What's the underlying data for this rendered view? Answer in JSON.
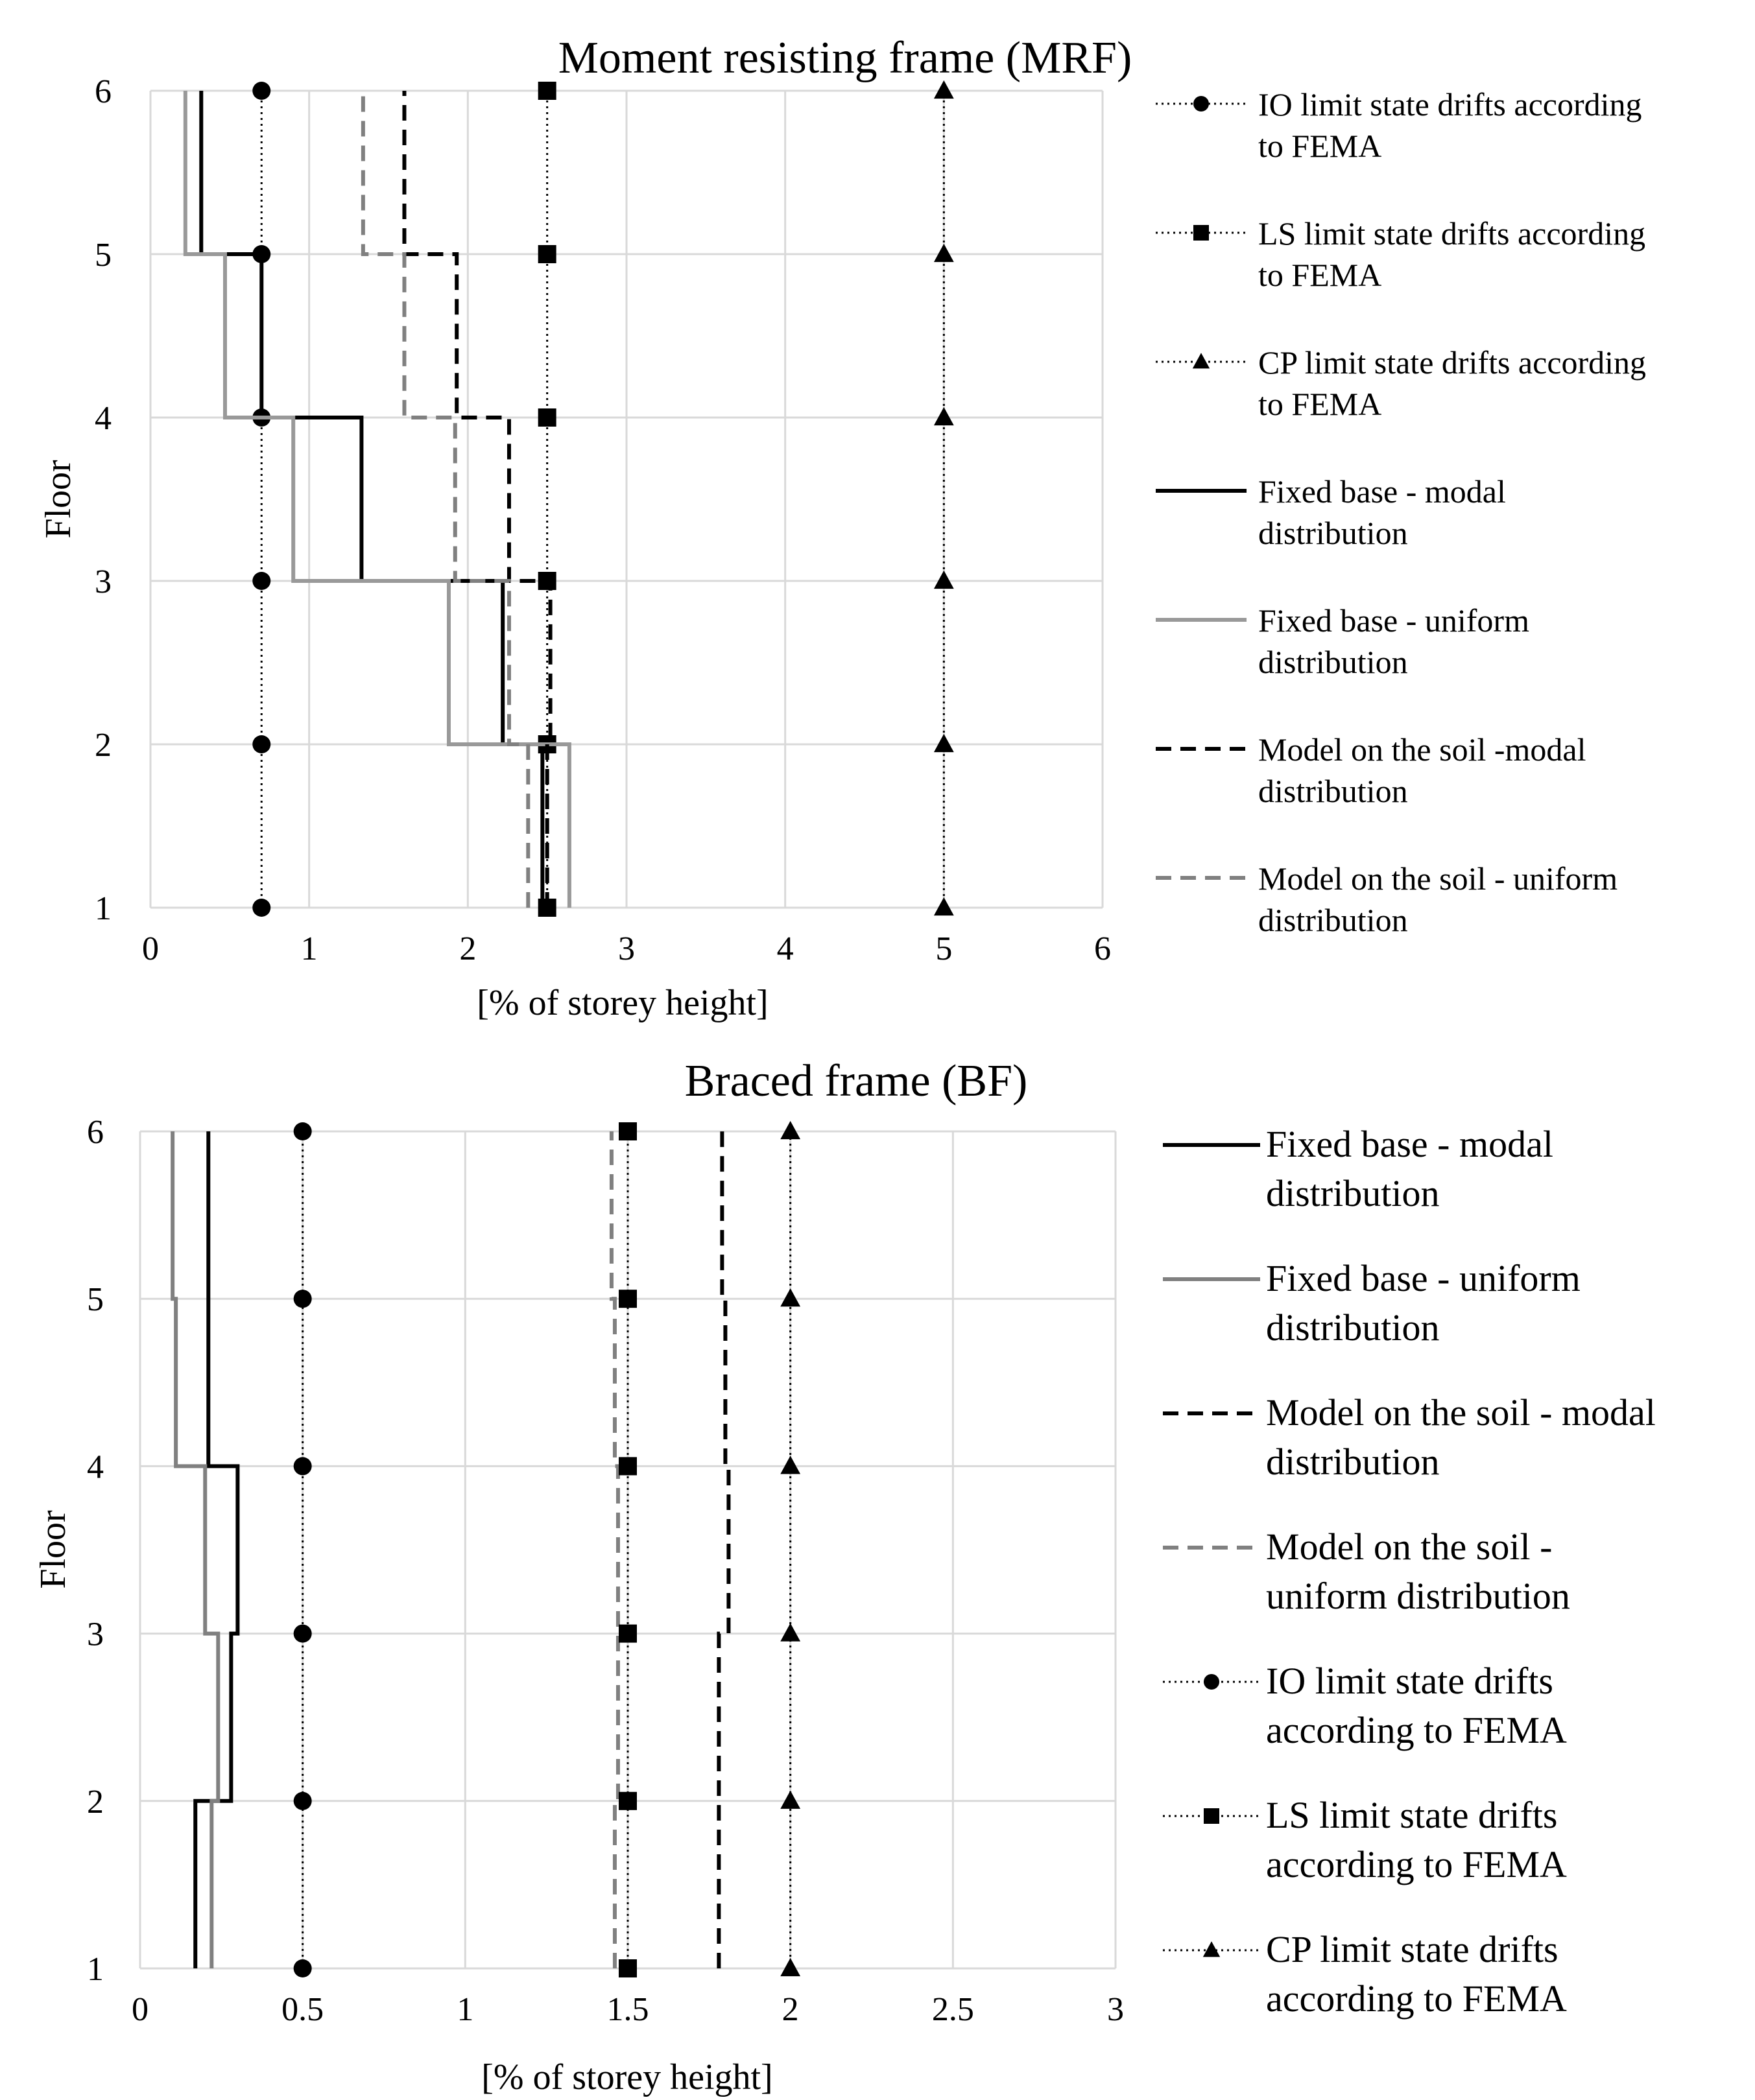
{
  "chart_data": [
    {
      "type": "line",
      "title": "Moment resisting frame (MRF)",
      "xlabel": "[% of storey height]",
      "ylabel": "Floor",
      "xlim": [
        0,
        6
      ],
      "ylim": [
        1,
        6
      ],
      "xticks": [
        "0",
        "1",
        "2",
        "3",
        "4",
        "5",
        "6"
      ],
      "yticks": [
        "1",
        "2",
        "3",
        "4",
        "5",
        "6"
      ],
      "grid": true,
      "legend_position": "right",
      "series": [
        {
          "name": "IO limit state drifts according to FEMA",
          "kind": "limit",
          "marker": "circle",
          "color": "#000000",
          "x": [
            0.7,
            0.7,
            0.7,
            0.7,
            0.7,
            0.7
          ],
          "floors": [
            1,
            2,
            3,
            4,
            5,
            6
          ]
        },
        {
          "name": "LS limit state drifts according to FEMA",
          "kind": "limit",
          "marker": "square",
          "color": "#000000",
          "x": [
            2.5,
            2.5,
            2.5,
            2.5,
            2.5,
            2.5
          ],
          "floors": [
            1,
            2,
            3,
            4,
            5,
            6
          ]
        },
        {
          "name": "CP limit state drifts according to FEMA",
          "kind": "limit",
          "marker": "triangle",
          "color": "#000000",
          "x": [
            5,
            5,
            5,
            5,
            5,
            5
          ],
          "floors": [
            1,
            2,
            3,
            4,
            5,
            6
          ]
        },
        {
          "name": "Fixed base - modal distribution",
          "kind": "step",
          "dash": "solid",
          "color": "#000000",
          "drifts": [
            2.47,
            2.22,
            1.33,
            0.7,
            0.32
          ],
          "floors": [
            1,
            2,
            3,
            4,
            5,
            6
          ]
        },
        {
          "name": "Fixed base - uniform distribution",
          "kind": "step",
          "dash": "solid",
          "color": "#999999",
          "drifts": [
            2.64,
            1.88,
            0.9,
            0.47,
            0.22
          ],
          "floors": [
            1,
            2,
            3,
            4,
            5,
            6
          ]
        },
        {
          "name": "Model on the soil -modal distribution",
          "kind": "step",
          "dash": "dashed",
          "color": "#000000",
          "drifts": [
            2.5,
            2.52,
            2.26,
            1.93,
            1.6
          ],
          "floors": [
            1,
            2,
            3,
            4,
            5,
            6
          ]
        },
        {
          "name": "Model on the soil - uniform distribution",
          "kind": "step",
          "dash": "dashed",
          "color": "#808080",
          "drifts": [
            2.38,
            2.26,
            1.92,
            1.6,
            1.34
          ],
          "floors": [
            1,
            2,
            3,
            4,
            5,
            6
          ]
        }
      ]
    },
    {
      "type": "line",
      "title": "Braced frame (BF)",
      "xlabel": "[% of storey height]",
      "ylabel": "Floor",
      "xlim": [
        0,
        3
      ],
      "ylim": [
        1,
        6
      ],
      "xticks": [
        "0",
        "0.5",
        "1",
        "1.5",
        "2",
        "2.5",
        "3"
      ],
      "yticks": [
        "1",
        "2",
        "3",
        "4",
        "5",
        "6"
      ],
      "grid": true,
      "legend_position": "right",
      "series": [
        {
          "name": "Fixed base - modal distribution",
          "kind": "step",
          "dash": "solid",
          "color": "#000000",
          "drifts": [
            0.17,
            0.28,
            0.3,
            0.21,
            0.21
          ],
          "floors": [
            1,
            2,
            3,
            4,
            5,
            6
          ]
        },
        {
          "name": "Fixed base - uniform distribution",
          "kind": "step",
          "dash": "solid",
          "color": "#808080",
          "drifts": [
            0.22,
            0.24,
            0.2,
            0.11,
            0.1
          ],
          "floors": [
            1,
            2,
            3,
            4,
            5,
            6
          ]
        },
        {
          "name": "Model on the soil - modal distribution",
          "kind": "step",
          "dash": "dashed",
          "color": "#000000",
          "drifts": [
            1.78,
            1.78,
            1.81,
            1.8,
            1.79
          ],
          "floors": [
            1,
            2,
            3,
            4,
            5,
            6
          ]
        },
        {
          "name": "Model on the soil - uniform distribution",
          "kind": "step",
          "dash": "dashed",
          "color": "#808080",
          "drifts": [
            1.46,
            1.47,
            1.47,
            1.46,
            1.45
          ],
          "floors": [
            1,
            2,
            3,
            4,
            5,
            6
          ]
        },
        {
          "name": "IO limit state drifts according to FEMA",
          "kind": "limit",
          "marker": "circle",
          "color": "#000000",
          "x": [
            0.5,
            0.5,
            0.5,
            0.5,
            0.5,
            0.5
          ],
          "floors": [
            1,
            2,
            3,
            4,
            5,
            6
          ]
        },
        {
          "name": "LS limit state drifts according to FEMA",
          "kind": "limit",
          "marker": "square",
          "color": "#000000",
          "x": [
            1.5,
            1.5,
            1.5,
            1.5,
            1.5,
            1.5
          ],
          "floors": [
            1,
            2,
            3,
            4,
            5,
            6
          ]
        },
        {
          "name": "CP limit state drifts according to FEMA",
          "kind": "limit",
          "marker": "triangle",
          "color": "#000000",
          "x": [
            2,
            2,
            2,
            2,
            2,
            2
          ],
          "floors": [
            1,
            2,
            3,
            4,
            5,
            6
          ]
        }
      ]
    }
  ],
  "legend_text": {
    "mrf": [
      [
        "IO limit state drifts according",
        "to FEMA"
      ],
      [
        "LS limit state drifts according",
        "to FEMA"
      ],
      [
        "CP limit state drifts according",
        "to FEMA"
      ],
      [
        "Fixed base - modal",
        "distribution"
      ],
      [
        "Fixed base - uniform",
        "distribution"
      ],
      [
        "Model on the soil -modal",
        "distribution"
      ],
      [
        "Model on the soil - uniform",
        "distribution"
      ]
    ],
    "bf": [
      [
        "Fixed base - modal",
        "distribution"
      ],
      [
        "Fixed base - uniform",
        "distribution"
      ],
      [
        "Model on the soil - modal",
        "distribution"
      ],
      [
        "Model on the soil -",
        "uniform distribution"
      ],
      [
        "IO limit state drifts",
        "according to FEMA"
      ],
      [
        "LS limit state drifts",
        "according to FEMA"
      ],
      [
        "CP limit state drifts",
        "according to FEMA"
      ]
    ]
  }
}
